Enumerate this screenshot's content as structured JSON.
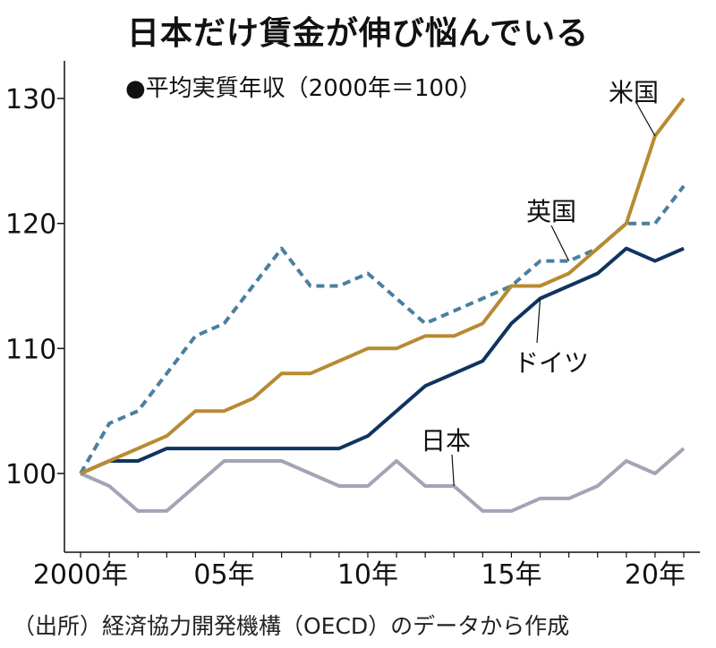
{
  "title": "日本だけ賃金が伸び悩んでいる",
  "subtitle": "●平均実質年収（2000年＝100）",
  "source": "（出所）経済協力開発機構（OECD）のデータから作成",
  "colors": {
    "us": "#b88a32",
    "uk": "#4a7fa0",
    "de": "#0f3460",
    "jp": "#a4a4b6",
    "axis": "#111111"
  },
  "chart_data": {
    "type": "line",
    "title": "日本だけ賃金が伸び悩んでいる",
    "subtitle": "平均実質年収（2000年＝100）",
    "xlabel": "",
    "ylabel": "",
    "x": [
      2000,
      2001,
      2002,
      2003,
      2004,
      2005,
      2006,
      2007,
      2008,
      2009,
      2010,
      2011,
      2012,
      2013,
      2014,
      2015,
      2016,
      2017,
      2018,
      2019,
      2020,
      2021
    ],
    "xlim": [
      1999.3,
      2021.4
    ],
    "ylim": [
      94.5,
      133
    ],
    "yticks": [
      100,
      110,
      120,
      130
    ],
    "xticks": [
      2000,
      2005,
      2010,
      2015,
      2020
    ],
    "xtick_labels": [
      "2000年",
      "05年",
      "10年",
      "15年",
      "20年"
    ],
    "series": [
      {
        "key": "us",
        "name": "米国",
        "style": "solid",
        "values": [
          100,
          101,
          102,
          103,
          105,
          105,
          106,
          108,
          108,
          109,
          110,
          110,
          111,
          111,
          112,
          115,
          115,
          116,
          118,
          120,
          127,
          130
        ]
      },
      {
        "key": "uk",
        "name": "英国",
        "style": "dashed",
        "values": [
          100,
          104,
          105,
          108,
          111,
          112,
          115,
          118,
          115,
          115,
          116,
          114,
          112,
          113,
          114,
          115,
          117,
          117,
          118,
          120,
          120,
          123
        ]
      },
      {
        "key": "de",
        "name": "ドイツ",
        "style": "solid",
        "values": [
          100,
          101,
          101,
          102,
          102,
          102,
          102,
          102,
          102,
          102,
          103,
          105,
          107,
          108,
          109,
          112,
          114,
          115,
          116,
          118,
          117,
          118
        ]
      },
      {
        "key": "jp",
        "name": "日本",
        "style": "solid",
        "values": [
          100,
          99,
          97,
          97,
          99,
          101,
          101,
          101,
          100,
          99,
          99,
          101,
          99,
          99,
          97,
          97,
          98,
          98,
          99,
          101,
          100,
          102
        ]
      }
    ]
  }
}
